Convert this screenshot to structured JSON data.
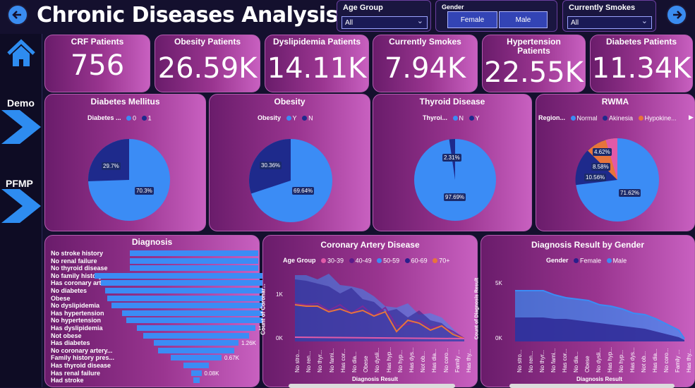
{
  "header": {
    "title": "Chronic Diseases Analysis"
  },
  "filters": {
    "age_group": {
      "label": "Age Group",
      "value": "All"
    },
    "gender": {
      "label": "Gender",
      "options": [
        "Female",
        "Male"
      ]
    },
    "smokes": {
      "label": "Currently Smokes",
      "value": "All"
    }
  },
  "sidebar": {
    "items": [
      {
        "label": "Demo"
      },
      {
        "label": "PFMP"
      }
    ]
  },
  "kpis": [
    {
      "title": "CRF Patients",
      "value": "756"
    },
    {
      "title": "Obesity Patients",
      "value": "26.59K"
    },
    {
      "title": "Dyslipidemia Patients",
      "value": "14.11K"
    },
    {
      "title": "Currently Smokes",
      "value": "7.94K"
    },
    {
      "title": "Hypertension Patients",
      "value": "22.55K"
    },
    {
      "title": "Diabetes Patients",
      "value": "11.34K"
    }
  ],
  "pies": [
    {
      "title": "Diabetes Mellitus",
      "legend_title": "Diabetes ...",
      "legend": [
        "0",
        "1"
      ],
      "labels": [
        "29.7%",
        "70.3%"
      ]
    },
    {
      "title": "Obesity",
      "legend_title": "Obesity",
      "legend": [
        "Y",
        "N"
      ],
      "labels": [
        "30.36%",
        "69.64%"
      ]
    },
    {
      "title": "Thyroid Disease",
      "legend_title": "Thyroi...",
      "legend": [
        "N",
        "Y"
      ],
      "labels": [
        "2.31%",
        "97.69%"
      ]
    },
    {
      "title": "RWMA",
      "legend_title": "Region...",
      "legend": [
        "Normal",
        "Akinesia",
        "Hypokine..."
      ],
      "labels": [
        "4.62%",
        "8.58%",
        "10.56%",
        "71.62%"
      ]
    }
  ],
  "diagnosis": {
    "title": "Diagnosis",
    "items": [
      {
        "label": "No stroke history",
        "value": ""
      },
      {
        "label": "No renal failure",
        "value": ""
      },
      {
        "label": "No thyroid disease",
        "value": ""
      },
      {
        "label": "No family history",
        "value": ""
      },
      {
        "label": "Has coronary arter...",
        "value": "3.02K"
      },
      {
        "label": "No diabetes",
        "value": ""
      },
      {
        "label": "Obese",
        "value": "2.95K"
      },
      {
        "label": "No dyslipidemia",
        "value": ""
      },
      {
        "label": "Has hypertension",
        "value": "2.51K"
      },
      {
        "label": "No hypertension",
        "value": ""
      },
      {
        "label": "Has dyslipidemia",
        "value": "1.57K"
      },
      {
        "label": "Not obese",
        "value": ""
      },
      {
        "label": "Has diabetes",
        "value": "1.26K"
      },
      {
        "label": "No coronary artery...",
        "value": ""
      },
      {
        "label": "Family history pres...",
        "value": "0.67K"
      },
      {
        "label": "Has thyroid disease",
        "value": ""
      },
      {
        "label": "Has renal failure",
        "value": "0.08K"
      },
      {
        "label": "Had stroke",
        "value": ""
      }
    ]
  },
  "cad": {
    "title": "Coronary Artery Disease",
    "legend_title": "Age Group",
    "legend": [
      "30-39",
      "40-49",
      "50-59",
      "60-69",
      "70+"
    ],
    "ylabel": "Count of Coronar...",
    "xlabel": "Diagnosis Result",
    "yticks": [
      "1K",
      "0K"
    ],
    "xticks": [
      "No stro...",
      "No ren...",
      "No thyr...",
      "No fami...",
      "Has cor...",
      "No dia...",
      "Obese",
      "No dysli...",
      "Has hyp...",
      "No hyp...",
      "Has dys...",
      "Not ob...",
      "Has dia...",
      "No coro...",
      "Family ...",
      "Has thy..."
    ]
  },
  "gender_chart": {
    "title": "Diagnosis Result by Gender",
    "legend_title": "Gender",
    "legend": [
      "Female",
      "Male"
    ],
    "ylabel": "Count of Diagnosis Result",
    "xlabel": "Diagnosis Result",
    "yticks": [
      "5K",
      "0K"
    ],
    "xticks": [
      "No stro...",
      "No ren...",
      "No thyr...",
      "No fami...",
      "Has cor...",
      "No dia...",
      "Obese",
      "No dysli...",
      "Has hyp...",
      "No hyp...",
      "Has dys...",
      "Not ob...",
      "Has dia...",
      "No coro...",
      "Family ...",
      "Has thy..."
    ]
  },
  "colors": {
    "blue": "#3b8cf5",
    "navy": "#1e2a8c",
    "orange": "#e8743b",
    "pink": "#e05aa8"
  }
}
